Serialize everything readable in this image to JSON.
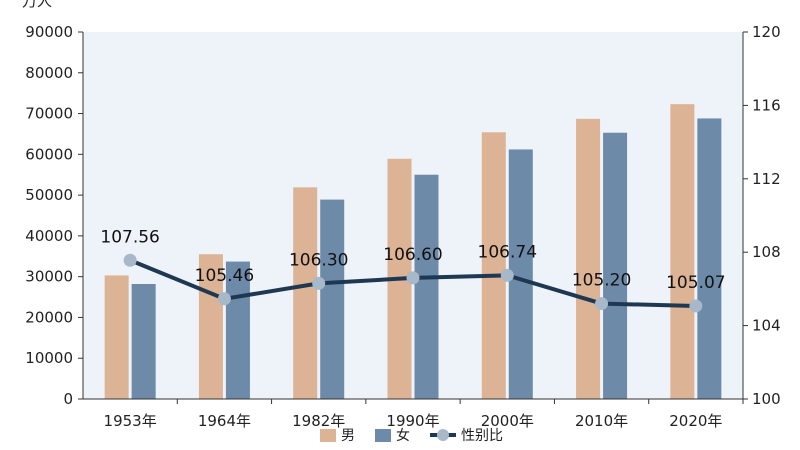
{
  "chart_data": {
    "type": "bar",
    "categories": [
      "1953年",
      "1964年",
      "1982年",
      "1990年",
      "2000年",
      "2010年",
      "2020年"
    ],
    "series": [
      {
        "name": "男",
        "kind": "bar",
        "axis": "left",
        "color": "#dcb394",
        "values": [
          30300,
          35500,
          51900,
          58900,
          65400,
          68700,
          72300
        ]
      },
      {
        "name": "女",
        "kind": "bar",
        "axis": "left",
        "color": "#6d8aa8",
        "values": [
          28200,
          33700,
          48900,
          55000,
          61200,
          65300,
          68800
        ]
      },
      {
        "name": "性别比",
        "kind": "line",
        "axis": "right",
        "color": "#1f3852",
        "marker_color": "#a7b8c8",
        "values": [
          107.56,
          105.46,
          106.3,
          106.6,
          106.74,
          105.2,
          105.07
        ],
        "labels": [
          "107.56",
          "105.46",
          "106.30",
          "106.60",
          "106.74",
          "105.20",
          "105.07"
        ]
      }
    ],
    "yleft": {
      "label": "万人",
      "min": 0,
      "max": 90000,
      "ticks": [
        "0",
        "10000",
        "20000",
        "30000",
        "40000",
        "50000",
        "60000",
        "70000",
        "80000",
        "90000"
      ]
    },
    "yright": {
      "min": 100,
      "max": 120,
      "ticks": [
        "100",
        "104",
        "108",
        "112",
        "116",
        "120"
      ]
    },
    "plot_background": "#eef2f9",
    "grid": false,
    "legend": {
      "position": "bottom",
      "items": [
        "男",
        "女",
        "性别比"
      ]
    }
  }
}
